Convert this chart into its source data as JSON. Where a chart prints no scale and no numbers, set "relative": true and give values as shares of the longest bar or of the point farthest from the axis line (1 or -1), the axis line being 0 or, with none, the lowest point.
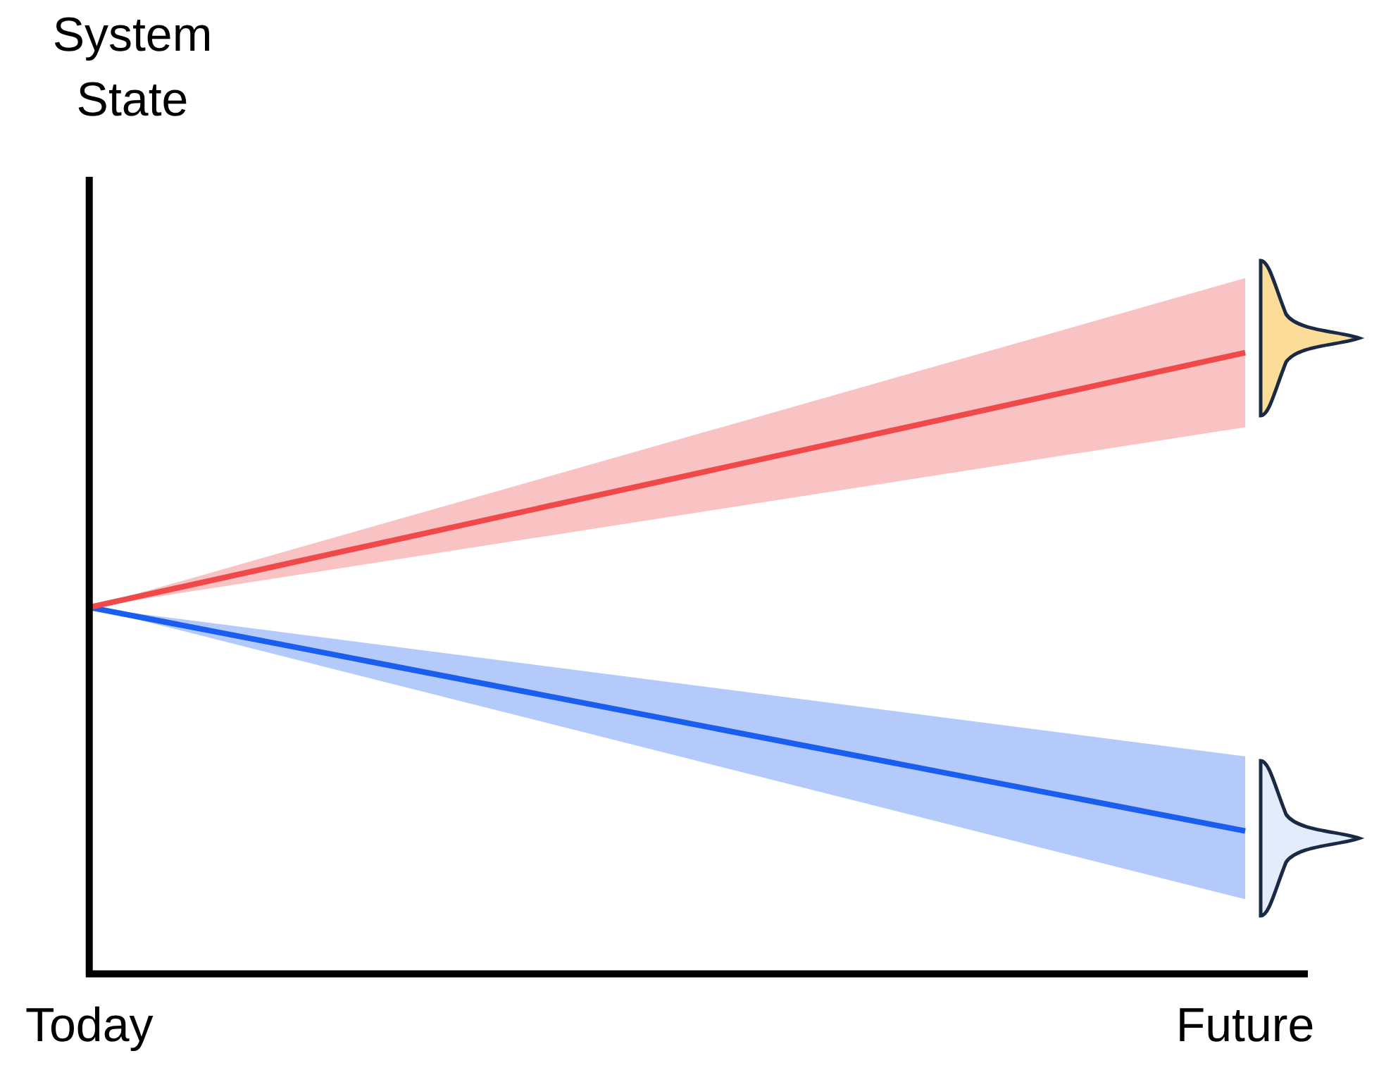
{
  "chart_data": {
    "type": "line",
    "ylabel": "System State",
    "categories": [
      "Today",
      "Future"
    ],
    "relative": true,
    "legend": false,
    "grid": false,
    "marker": "none",
    "line_style": "solid",
    "series": [
      {
        "color": "#f04a4a",
        "values": [
          0.59,
          1
        ],
        "lower": [
          0.59,
          0.88
        ],
        "upper": [
          0.59,
          1.12
        ]
      },
      {
        "color": "#1a5ff0",
        "values": [
          0.59,
          0.23
        ],
        "lower": [
          0.59,
          0.12
        ],
        "upper": [
          0.59,
          0.35
        ]
      }
    ]
  }
}
